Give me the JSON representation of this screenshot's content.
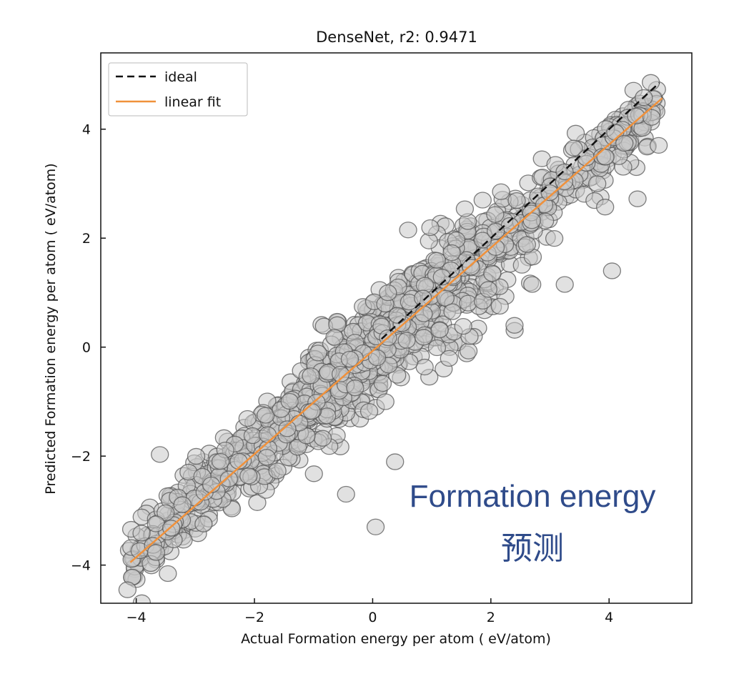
{
  "chart_data": {
    "type": "scatter",
    "title": "DenseNet, r2: 0.9471",
    "xlabel": "Actual Formation energy per atom ( eV/atom)",
    "ylabel": "Predicted Formation energy per atom ( eV/atom)",
    "xlim": [
      -4.6,
      5.4
    ],
    "ylim": [
      -4.7,
      5.4
    ],
    "xticks": [
      -4,
      -2,
      0,
      2,
      4
    ],
    "yticks": [
      -4,
      -2,
      0,
      2,
      4
    ],
    "xtick_labels": [
      "−4",
      "−2",
      "0",
      "2",
      "4"
    ],
    "ytick_labels": [
      "−4",
      "−2",
      "0",
      "2",
      "4"
    ],
    "legend": {
      "position": "top-left",
      "entries": [
        {
          "label": "ideal",
          "style": "dashed",
          "color": "#111111"
        },
        {
          "label": "linear fit",
          "style": "solid",
          "color": "#f0913b"
        }
      ]
    },
    "series": [
      {
        "name": "ideal",
        "type": "line",
        "x": [
          0.15,
          4.85
        ],
        "y": [
          0.15,
          4.85
        ],
        "color": "#111111"
      },
      {
        "name": "linear fit",
        "type": "line",
        "x": [
          -4.1,
          4.9
        ],
        "y": [
          -3.95,
          4.57
        ],
        "color": "#f0913b"
      },
      {
        "name": "outliers",
        "type": "scatter",
        "x": [
          0.05,
          -0.45,
          0.6,
          3.25,
          4.05,
          2.7,
          -3.6,
          0.85,
          3.8,
          2.15,
          1.35,
          2.4
        ],
        "y": [
          -3.3,
          -2.7,
          2.15,
          1.15,
          1.4,
          1.15,
          -1.97,
          0.9,
          3.0,
          0.75,
          0.65,
          0.4
        ]
      }
    ],
    "cloud": {
      "description_free": true,
      "n_points": 1350,
      "x_range": [
        -4.15,
        4.85
      ],
      "slope": 0.947,
      "intercept": -0.02,
      "spread": 0.42,
      "marker": {
        "fill": "#c8c8c8",
        "edge": "#555555",
        "alpha": 0.55
      }
    },
    "colors": {
      "ideal": "#111111",
      "fit": "#f0913b",
      "marker_fill": "#cccccc",
      "marker_edge": "#555555"
    }
  },
  "overlay": {
    "line1": "Formation energy",
    "line2": "预测",
    "color": "#2f4b8a"
  }
}
